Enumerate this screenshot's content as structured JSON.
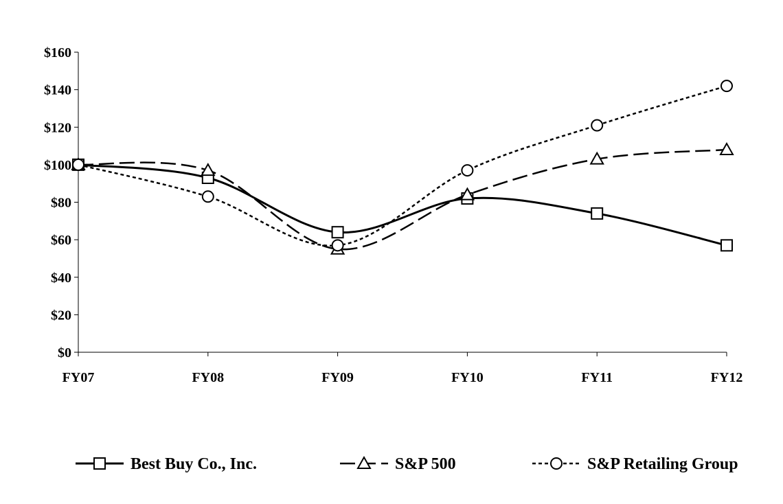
{
  "chart_data": {
    "type": "line",
    "title": "",
    "xlabel": "",
    "ylabel": "",
    "categories": [
      "FY07",
      "FY08",
      "FY09",
      "FY10",
      "FY11",
      "FY12"
    ],
    "ylim": [
      0,
      160
    ],
    "yticks": [
      0,
      20,
      40,
      60,
      80,
      100,
      120,
      140,
      160
    ],
    "ytick_labels": [
      "$0",
      "$20",
      "$40",
      "$60",
      "$80",
      "$100",
      "$120",
      "$140",
      "$160"
    ],
    "grid": false,
    "legend_position": "bottom",
    "series": [
      {
        "name": "Best Buy Co., Inc.",
        "style": "solid",
        "marker": "square",
        "color": "#000000",
        "values": [
          100,
          93,
          64,
          82,
          74,
          57
        ]
      },
      {
        "name": "S&P 500",
        "style": "dashed",
        "marker": "triangle",
        "color": "#000000",
        "values": [
          100,
          97,
          55,
          84,
          103,
          108
        ]
      },
      {
        "name": "S&P Retailing Group",
        "style": "dotted",
        "marker": "circle",
        "color": "#000000",
        "values": [
          100,
          83,
          57,
          97,
          121,
          142
        ]
      }
    ]
  }
}
